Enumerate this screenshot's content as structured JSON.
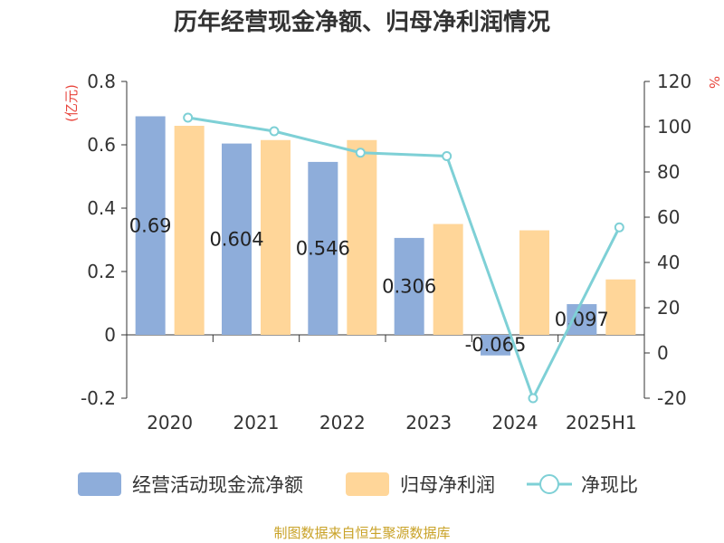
{
  "title": "历年经营现金净额、归母净利润情况",
  "source_note": "制图数据来自恒生聚源数据库",
  "colors": {
    "cash_flow": "#8eadda",
    "net_profit": "#ffd699",
    "ratio": "#7ed0d6",
    "unit": "#e8453c"
  },
  "chart_data": {
    "type": "bar",
    "categories": [
      "2020",
      "2021",
      "2022",
      "2023",
      "2024",
      "2025H1"
    ],
    "left_axis": {
      "unit_label": "(亿元)",
      "ylim": [
        -0.2,
        0.8
      ],
      "ticks": [
        -0.2,
        0,
        0.2,
        0.4,
        0.6,
        0.8
      ],
      "tick_labels": [
        "-0.2",
        "0",
        "0.2",
        "0.4",
        "0.6",
        "0.8"
      ]
    },
    "right_axis": {
      "unit_label": "%",
      "ylim": [
        -20,
        120
      ],
      "ticks": [
        -20,
        0,
        20,
        40,
        60,
        80,
        100,
        120
      ],
      "tick_labels": [
        "-20",
        "0",
        "20",
        "40",
        "60",
        "80",
        "100",
        "120"
      ]
    },
    "series": [
      {
        "name": "经营活动现金流净额",
        "type": "bar",
        "axis": "left",
        "values": [
          0.69,
          0.604,
          0.546,
          0.306,
          -0.065,
          0.097
        ],
        "labels": [
          "0.69",
          "0.604",
          "0.546",
          "0.306",
          "-0.065",
          "0.097"
        ]
      },
      {
        "name": "归母净利润",
        "type": "bar",
        "axis": "left",
        "values": [
          0.66,
          0.615,
          0.615,
          0.35,
          0.33,
          0.175
        ]
      },
      {
        "name": "净现比",
        "type": "line",
        "axis": "right",
        "values": [
          104,
          98,
          88.5,
          87,
          -20,
          55.5
        ]
      }
    ],
    "legend": [
      "经营活动现金流净额",
      "归母净利润",
      "净现比"
    ],
    "legend_position": "bottom",
    "grid": false
  }
}
